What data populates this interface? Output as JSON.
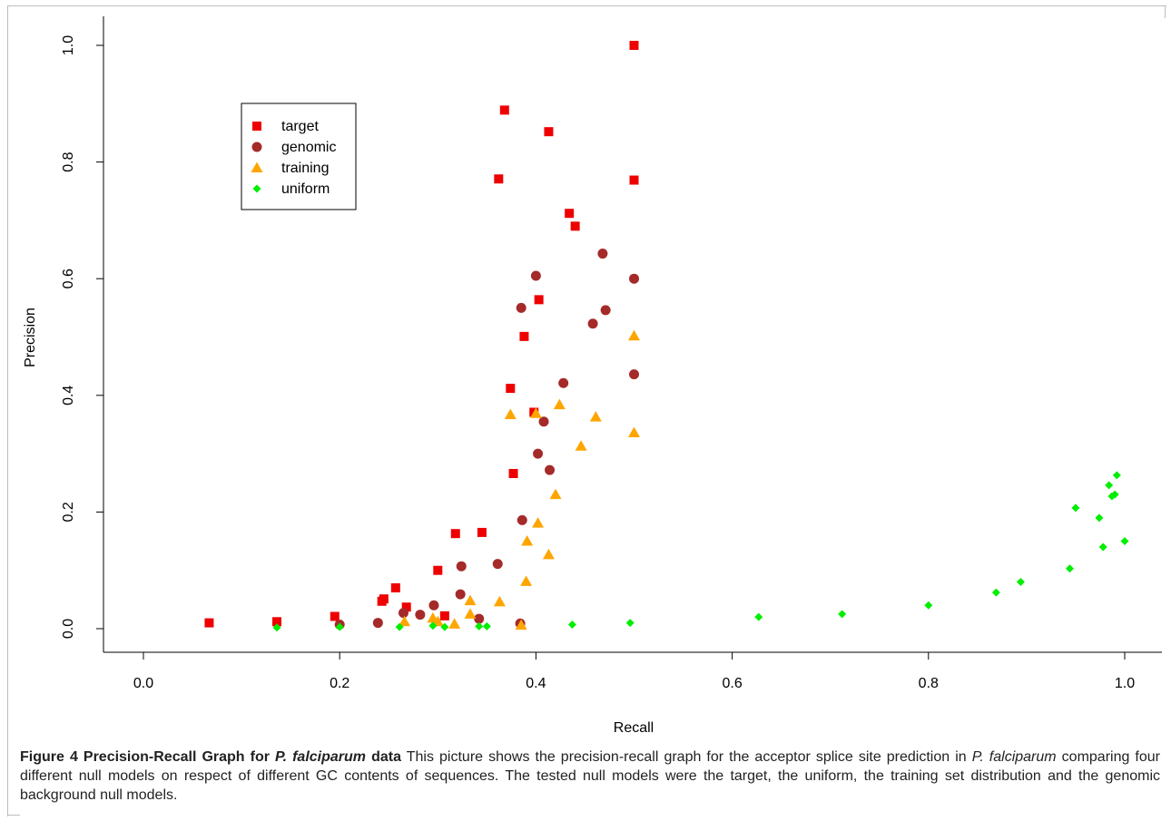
{
  "caption": {
    "lead_prefix": "Figure 4 Precision-Recall Graph for ",
    "lead_italic": "P. falciparum",
    "lead_suffix": " data",
    "body_1": " This picture shows the precision-recall graph for the acceptor splice site prediction in ",
    "body_italic": "P. falciparum",
    "body_2": " comparing four different null models on respect of different GC contents of sequences. The tested null models were the target, the uniform, the training set distribution and the genomic background null models."
  },
  "chart_data": {
    "type": "scatter",
    "title": "",
    "xlabel": "Recall",
    "ylabel": "Precision",
    "xlim": [
      0.0,
      1.0
    ],
    "ylim": [
      0.0,
      1.0
    ],
    "xticks": [
      "0.0",
      "0.2",
      "0.4",
      "0.6",
      "0.8",
      "1.0"
    ],
    "yticks": [
      "0.0",
      "0.2",
      "0.4",
      "0.6",
      "0.8",
      "1.0"
    ],
    "grid": false,
    "legend_position": "top-left",
    "series": [
      {
        "name": "target",
        "color": "#ee0000",
        "marker": "square",
        "points": [
          [
            0.067,
            0.01
          ],
          [
            0.136,
            0.012
          ],
          [
            0.195,
            0.021
          ],
          [
            0.243,
            0.047
          ],
          [
            0.245,
            0.051
          ],
          [
            0.257,
            0.07
          ],
          [
            0.268,
            0.037
          ],
          [
            0.3,
            0.1
          ],
          [
            0.307,
            0.022
          ],
          [
            0.318,
            0.163
          ],
          [
            0.345,
            0.165
          ],
          [
            0.362,
            0.771
          ],
          [
            0.368,
            0.889
          ],
          [
            0.374,
            0.412
          ],
          [
            0.377,
            0.266
          ],
          [
            0.388,
            0.501
          ],
          [
            0.398,
            0.371
          ],
          [
            0.403,
            0.564
          ],
          [
            0.413,
            0.852
          ],
          [
            0.434,
            0.712
          ],
          [
            0.44,
            0.69
          ],
          [
            0.5,
            1.0
          ],
          [
            0.5,
            0.769
          ]
        ]
      },
      {
        "name": "genomic",
        "color": "#a52a2a",
        "marker": "circle",
        "points": [
          [
            0.2,
            0.007
          ],
          [
            0.239,
            0.01
          ],
          [
            0.265,
            0.027
          ],
          [
            0.282,
            0.024
          ],
          [
            0.296,
            0.04
          ],
          [
            0.323,
            0.059
          ],
          [
            0.324,
            0.107
          ],
          [
            0.342,
            0.017
          ],
          [
            0.361,
            0.111
          ],
          [
            0.384,
            0.009
          ],
          [
            0.385,
            0.55
          ],
          [
            0.386,
            0.186
          ],
          [
            0.4,
            0.605
          ],
          [
            0.402,
            0.3
          ],
          [
            0.408,
            0.355
          ],
          [
            0.414,
            0.272
          ],
          [
            0.428,
            0.421
          ],
          [
            0.458,
            0.523
          ],
          [
            0.468,
            0.643
          ],
          [
            0.471,
            0.546
          ],
          [
            0.5,
            0.6
          ],
          [
            0.5,
            0.436
          ]
        ]
      },
      {
        "name": "training",
        "color": "#ffa500",
        "marker": "triangle",
        "points": [
          [
            0.266,
            0.012
          ],
          [
            0.295,
            0.018
          ],
          [
            0.3,
            0.012
          ],
          [
            0.317,
            0.008
          ],
          [
            0.333,
            0.048
          ],
          [
            0.333,
            0.025
          ],
          [
            0.363,
            0.046
          ],
          [
            0.374,
            0.367
          ],
          [
            0.385,
            0.006
          ],
          [
            0.39,
            0.081
          ],
          [
            0.391,
            0.15
          ],
          [
            0.4,
            0.369
          ],
          [
            0.402,
            0.181
          ],
          [
            0.413,
            0.127
          ],
          [
            0.42,
            0.23
          ],
          [
            0.424,
            0.384
          ],
          [
            0.446,
            0.313
          ],
          [
            0.461,
            0.363
          ],
          [
            0.5,
            0.502
          ],
          [
            0.5,
            0.336
          ]
        ]
      },
      {
        "name": "uniform",
        "color": "#00ee00",
        "marker": "diamond",
        "points": [
          [
            0.136,
            0.002
          ],
          [
            0.2,
            0.003
          ],
          [
            0.261,
            0.003
          ],
          [
            0.295,
            0.005
          ],
          [
            0.307,
            0.003
          ],
          [
            0.342,
            0.004
          ],
          [
            0.35,
            0.004
          ],
          [
            0.437,
            0.007
          ],
          [
            0.496,
            0.01
          ],
          [
            0.627,
            0.02
          ],
          [
            0.712,
            0.025
          ],
          [
            0.8,
            0.04
          ],
          [
            0.869,
            0.062
          ],
          [
            0.894,
            0.08
          ],
          [
            0.944,
            0.103
          ],
          [
            0.95,
            0.207
          ],
          [
            0.974,
            0.19
          ],
          [
            0.978,
            0.14
          ],
          [
            0.984,
            0.246
          ],
          [
            0.987,
            0.227
          ],
          [
            0.99,
            0.23
          ],
          [
            0.992,
            0.263
          ],
          [
            1.0,
            0.15
          ]
        ]
      }
    ]
  }
}
